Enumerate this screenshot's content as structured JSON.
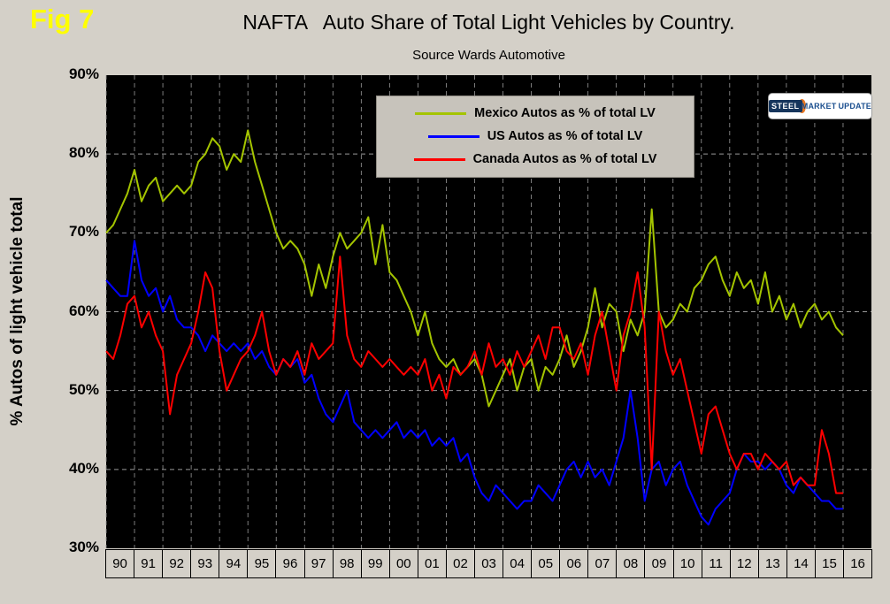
{
  "fig_label": "Fig 7",
  "title": "NAFTA   Auto Share of Total Light Vehicles by Country.",
  "subtitle": "Source Wards Automotive",
  "y_axis_title": "% Autos of light vehicle total",
  "logo": {
    "steel": "STEEL",
    "market": "MARKET",
    "update": "UPDATE"
  },
  "chart_data": {
    "type": "line",
    "title": "NAFTA   Auto Share of Total Light Vehicles by Country.",
    "subtitle": "Source Wards Automotive",
    "ylabel": "% Autos of light vehicle total",
    "background": "#000000",
    "grid": "dashed gray on black",
    "legend_position": "top-center inside plot",
    "ylim": [
      30,
      90
    ],
    "xlim": [
      1990,
      2017
    ],
    "y_ticks": [
      90,
      80,
      70,
      60,
      50,
      40,
      30
    ],
    "x_tick_labels": [
      "90",
      "91",
      "92",
      "93",
      "94",
      "95",
      "96",
      "97",
      "98",
      "99",
      "00",
      "01",
      "02",
      "03",
      "04",
      "05",
      "06",
      "07",
      "08",
      "09",
      "10",
      "11",
      "12",
      "13",
      "14",
      "15",
      "16"
    ],
    "x_start": 1990,
    "x_step_years": 0.25,
    "x_unit": "year (quarterly estimates read from monthly line)",
    "y_unit": "percent",
    "series": [
      {
        "name": "Mexico Autos as % of total LV",
        "color": "#a4c400",
        "values": [
          70,
          71,
          73,
          75,
          78,
          74,
          76,
          77,
          74,
          75,
          76,
          75,
          76,
          79,
          80,
          82,
          81,
          78,
          80,
          79,
          83,
          79,
          76,
          73,
          70,
          68,
          69,
          68,
          66,
          62,
          66,
          63,
          67,
          70,
          68,
          69,
          70,
          72,
          66,
          71,
          65,
          64,
          62,
          60,
          57,
          60,
          56,
          54,
          53,
          54,
          52,
          53,
          54,
          52,
          48,
          50,
          52,
          54,
          50,
          53,
          54,
          50,
          53,
          52,
          54,
          57,
          53,
          55,
          58,
          63,
          58,
          61,
          60,
          55,
          59,
          57,
          60,
          73,
          60,
          58,
          59,
          61,
          60,
          63,
          64,
          66,
          67,
          64,
          62,
          65,
          63,
          64,
          61,
          65,
          60,
          62,
          59,
          61,
          58,
          60,
          61,
          59,
          60,
          58,
          57
        ]
      },
      {
        "name": "US Autos as % of total LV",
        "color": "#0000ff",
        "values": [
          64,
          63,
          62,
          62,
          69,
          64,
          62,
          63,
          60,
          62,
          59,
          58,
          58,
          57,
          55,
          57,
          56,
          55,
          56,
          55,
          56,
          54,
          55,
          53,
          52,
          54,
          53,
          54,
          51,
          52,
          49,
          47,
          46,
          48,
          50,
          46,
          45,
          44,
          45,
          44,
          45,
          46,
          44,
          45,
          44,
          45,
          43,
          44,
          43,
          44,
          41,
          42,
          39,
          37,
          36,
          38,
          37,
          36,
          35,
          36,
          36,
          38,
          37,
          36,
          38,
          40,
          41,
          39,
          41,
          39,
          40,
          38,
          41,
          44,
          50,
          44,
          36,
          40,
          41,
          38,
          40,
          41,
          38,
          36,
          34,
          33,
          35,
          36,
          37,
          40,
          42,
          41,
          41,
          40,
          41,
          40,
          38,
          37,
          39,
          38,
          37,
          36,
          36,
          35,
          35
        ]
      },
      {
        "name": "Canada Autos as % of total LV",
        "color": "#ff0000",
        "values": [
          55,
          54,
          57,
          61,
          62,
          58,
          60,
          57,
          55,
          47,
          52,
          54,
          56,
          60,
          65,
          63,
          55,
          50,
          52,
          54,
          55,
          57,
          60,
          55,
          52,
          54,
          53,
          55,
          52,
          56,
          54,
          55,
          56,
          67,
          57,
          54,
          53,
          55,
          54,
          53,
          54,
          53,
          52,
          53,
          52,
          54,
          50,
          52,
          49,
          53,
          52,
          53,
          55,
          52,
          56,
          53,
          54,
          52,
          55,
          53,
          55,
          57,
          54,
          58,
          58,
          55,
          54,
          56,
          52,
          57,
          60,
          55,
          50,
          57,
          60,
          65,
          58,
          40,
          60,
          55,
          52,
          54,
          50,
          46,
          42,
          47,
          48,
          45,
          42,
          40,
          42,
          42,
          40,
          42,
          41,
          40,
          41,
          38,
          39,
          38,
          38,
          45,
          42,
          37,
          37
        ]
      }
    ]
  }
}
